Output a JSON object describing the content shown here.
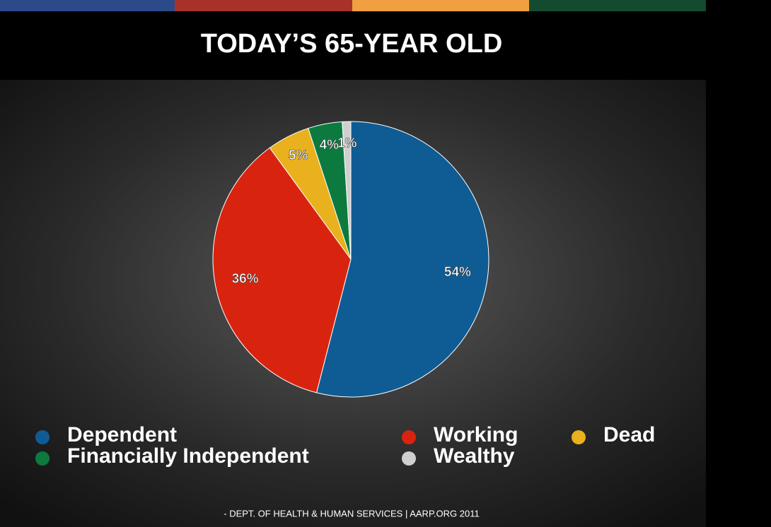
{
  "chart_data": {
    "type": "pie",
    "title": "TODAY’S 65-YEAR OLD",
    "categories": [
      "Dependent",
      "Working",
      "Dead",
      "Financially Independent",
      "Wealthy"
    ],
    "values": [
      54,
      36,
      5,
      4,
      1
    ],
    "value_labels": [
      "54%",
      "36%",
      "5%",
      "4%",
      "1%"
    ],
    "colors": [
      "#0f5c94",
      "#d8240f",
      "#e9b11d",
      "#0c7a3f",
      "#cfcfcf"
    ],
    "source": "- DEPT. OF HEALTH & HUMAN SERVICES | AARP.ORG 2011"
  }
}
